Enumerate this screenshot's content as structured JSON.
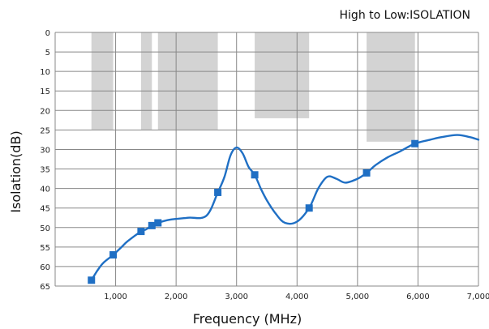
{
  "chart_data": {
    "type": "line",
    "title": "High to Low:ISOLATION",
    "xlabel": "Frequency (MHz)",
    "ylabel": "Isolation(dB)",
    "xlim": [
      0,
      7000
    ],
    "ylim": [
      0,
      65
    ],
    "y_inverted": true,
    "grid": true,
    "x_ticks": [
      1000,
      2000,
      3000,
      4000,
      5000,
      6000,
      7000
    ],
    "x_tick_labels": [
      "1,000",
      "2,000",
      "3,000",
      "4,000",
      "5,000",
      "6,000",
      "7,000"
    ],
    "y_ticks": [
      0,
      5,
      10,
      15,
      20,
      25,
      30,
      35,
      40,
      45,
      50,
      55,
      60,
      65
    ],
    "y_tick_labels": [
      "0",
      "5",
      "10",
      "15",
      "20",
      "25",
      "30",
      "35",
      "40",
      "45",
      "50",
      "55",
      "60",
      "65"
    ],
    "spec_bands": [
      {
        "x_start": 600,
        "x_end": 960,
        "limit": 25
      },
      {
        "x_start": 1420,
        "x_end": 1600,
        "limit": 25
      },
      {
        "x_start": 1700,
        "x_end": 2690,
        "limit": 25
      },
      {
        "x_start": 3300,
        "x_end": 4200,
        "limit": 22
      },
      {
        "x_start": 5150,
        "x_end": 5950,
        "limit": 28
      }
    ],
    "series": [
      {
        "curve": [
          [
            600,
            63.5
          ],
          [
            700,
            61
          ],
          [
            800,
            59
          ],
          [
            960,
            57
          ],
          [
            1100,
            55
          ],
          [
            1200,
            53.5
          ],
          [
            1420,
            51
          ],
          [
            1500,
            50.5
          ],
          [
            1600,
            49.5
          ],
          [
            1700,
            48.8
          ],
          [
            1900,
            48
          ],
          [
            2200,
            47.5
          ],
          [
            2500,
            47
          ],
          [
            2690,
            41
          ],
          [
            2800,
            37
          ],
          [
            2900,
            31.5
          ],
          [
            3000,
            29.5
          ],
          [
            3100,
            31
          ],
          [
            3200,
            34.5
          ],
          [
            3300,
            36.5
          ],
          [
            3400,
            40
          ],
          [
            3500,
            43
          ],
          [
            3650,
            46.5
          ],
          [
            3800,
            48.8
          ],
          [
            4000,
            48.5
          ],
          [
            4200,
            45
          ],
          [
            4350,
            40
          ],
          [
            4500,
            37
          ],
          [
            4650,
            37.5
          ],
          [
            4800,
            38.5
          ],
          [
            5000,
            37.5
          ],
          [
            5150,
            36
          ],
          [
            5300,
            34
          ],
          [
            5500,
            32
          ],
          [
            5700,
            30.5
          ],
          [
            5950,
            28.5
          ],
          [
            6200,
            27.5
          ],
          [
            6400,
            26.8
          ],
          [
            6650,
            26.3
          ],
          [
            6850,
            26.8
          ],
          [
            7000,
            27.5
          ]
        ],
        "markers": [
          [
            600,
            63.5
          ],
          [
            960,
            57
          ],
          [
            1420,
            51
          ],
          [
            1600,
            49.5
          ],
          [
            1700,
            48.8
          ],
          [
            2690,
            41
          ],
          [
            3300,
            36.5
          ],
          [
            4200,
            45
          ],
          [
            5150,
            36
          ],
          [
            5950,
            28.5
          ]
        ],
        "color": "#1f6fc4"
      }
    ],
    "colors": {
      "band": "#d3d3d3",
      "grid": "#888888",
      "line": "#1f6fc4",
      "marker": "#1f6fc4"
    }
  }
}
